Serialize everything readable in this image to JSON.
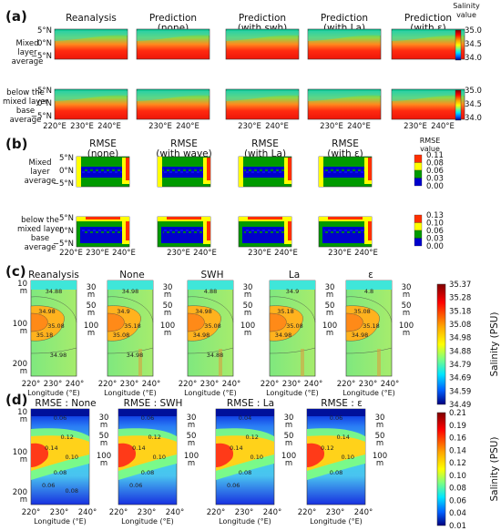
{
  "panel_labels": [
    "(a)",
    "(b)",
    "(c)",
    "(d)"
  ],
  "a": {
    "titles": [
      [
        "Reanalysis",
        ""
      ],
      [
        "Prediction",
        "(none)"
      ],
      [
        "Prediction",
        "(with swh)"
      ],
      [
        "Prediction",
        "(with La)"
      ],
      [
        "Prediction",
        "(with ε)"
      ]
    ],
    "rows": [
      [
        "Mixed",
        "layer",
        "average"
      ],
      [
        "below the",
        "mixed layer",
        "base",
        "average"
      ]
    ],
    "yticks": [
      "5°N",
      "0°N",
      "−5°N"
    ],
    "xticks": [
      "220°E",
      "230°E",
      "240°E"
    ],
    "cbar_title": [
      "Salinity",
      "value"
    ],
    "cbar_ticks": [
      "35.0",
      "34.5",
      "34.0"
    ]
  },
  "b": {
    "titles": [
      [
        "RMSE",
        "(none)"
      ],
      [
        "RMSE",
        "(with wave)"
      ],
      [
        "RMSE",
        "(with La)"
      ],
      [
        "RMSE",
        "(with ε)"
      ]
    ],
    "rows": [
      [
        "Mixed",
        "layer",
        "average"
      ],
      [
        "below the",
        "mixed layer",
        "base",
        "average"
      ]
    ],
    "yticks": [
      "5°N",
      "0°N",
      "−5°N"
    ],
    "xticks": [
      "220°E",
      "230°E",
      "240°E"
    ],
    "cbar_title": [
      "RMSE",
      "value"
    ],
    "cbar1_ticks": [
      "0.11",
      "0.08",
      "0.06",
      "0.03",
      "0.00"
    ],
    "cbar2_ticks": [
      "0.13",
      "0.10",
      "0.06",
      "0.03",
      "0.00"
    ]
  },
  "c": {
    "titles": [
      "Reanalysis",
      "None",
      "SWH",
      "La",
      "ε"
    ],
    "yticks_left": [
      "10",
      "m",
      "100",
      "m",
      "200",
      "m"
    ],
    "yticks_right": [
      "30",
      "m",
      "50",
      "m",
      "100",
      "m"
    ],
    "xticks": [
      "220°",
      "230°",
      "240°"
    ],
    "xlabel": "Longitude (°E)",
    "contour_labels": {
      "p0": [
        "34.88",
        "34.98",
        "35.08",
        "35.18",
        "34.98"
      ],
      "p1": [
        "34.98",
        "34.9",
        "35.18",
        "35.08",
        "34.98"
      ],
      "p2": [
        "4.88",
        "34.98",
        "35.08",
        "34.98",
        "34.88"
      ],
      "p3": [
        "34.9",
        "35.18",
        "35.08",
        "34.98"
      ],
      "p4": [
        "4.8",
        "35.08",
        "35.18",
        "34.98"
      ]
    },
    "cbar_ticks": [
      "35.37",
      "35.28",
      "35.18",
      "35.08",
      "34.98",
      "34.88",
      "34.79",
      "34.69",
      "34.59",
      "34.49"
    ],
    "cbar_label": "Salinity (PSU)"
  },
  "d": {
    "titles": [
      "RMSE : None",
      "RMSE : SWH",
      "RMSE : La",
      "RMSE : ε"
    ],
    "yticks_left": [
      "10",
      "m",
      "100",
      "m",
      "200",
      "m"
    ],
    "yticks_right": [
      "30",
      "m",
      "50",
      "m",
      "100",
      "m"
    ],
    "xticks": [
      "220°",
      "230°",
      "240°"
    ],
    "xlabel": "Longitude (°E)",
    "contour_labels": {
      "p0": [
        "0.06",
        "0.12",
        "0.14",
        "0.10",
        "0.08",
        "0.06",
        "0.08"
      ],
      "p1": [
        "0.06",
        "0.12",
        "0.14",
        "0.10",
        "0.08",
        "0.06"
      ],
      "p2": [
        "0.04",
        "0.12",
        "0.14",
        "0.10",
        "0.08",
        "0.06"
      ],
      "p3": [
        "0.06",
        "0.14",
        "0.12",
        "0.10",
        "0.08"
      ]
    },
    "cbar_ticks": [
      "0.21",
      "0.19",
      "0.16",
      "0.14",
      "0.12",
      "0.10",
      "0.08",
      "0.06",
      "0.04",
      "0.01"
    ],
    "cbar_label": "Salinity (PSU)"
  },
  "colors": {
    "jet": [
      "#00007f",
      "#0000ff",
      "#007fff",
      "#00e5ff",
      "#7fff7f",
      "#ffff00",
      "#ff7f00",
      "#ff0000",
      "#7f0000"
    ],
    "rmse_levels": [
      "#0000cc",
      "#1010ff",
      "#009a00",
      "#ffff00",
      "#ff3000"
    ]
  }
}
